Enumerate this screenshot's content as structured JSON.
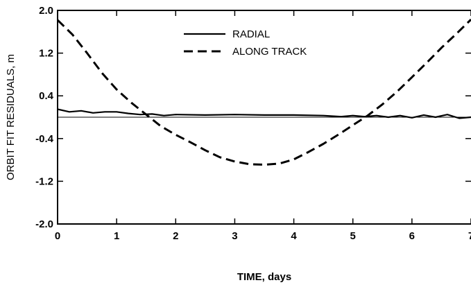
{
  "chart_data": {
    "type": "line",
    "title": "",
    "xlabel": "TIME, days",
    "ylabel": "ORBIT FIT RESIDUALS, m",
    "xlim": [
      0,
      7
    ],
    "ylim": [
      -2.0,
      2.0
    ],
    "x_ticks": [
      0,
      1,
      2,
      3,
      4,
      5,
      6,
      7
    ],
    "x_tick_labels": [
      "0",
      "1",
      "2",
      "3",
      "4",
      "5",
      "6",
      "7"
    ],
    "y_ticks": [
      2.0,
      1.2,
      0.4,
      -0.4,
      -1.2,
      -2.0
    ],
    "y_tick_labels": [
      "2.0",
      "1.2",
      "0.4",
      "-0.4",
      "-1.2",
      "-2.0"
    ],
    "grid": false,
    "legend_position": "top-center",
    "zero_line": true,
    "series": [
      {
        "name": "RADIAL",
        "style": "solid",
        "color": "#000000",
        "x": [
          0,
          0.2,
          0.4,
          0.6,
          0.8,
          1.0,
          1.2,
          1.4,
          1.6,
          1.8,
          2.0,
          2.5,
          3.0,
          3.5,
          4.0,
          4.5,
          4.8,
          5.0,
          5.2,
          5.4,
          5.6,
          5.8,
          6.0,
          6.2,
          6.4,
          6.6,
          6.8,
          7.0
        ],
        "y": [
          0.15,
          0.1,
          0.12,
          0.08,
          0.1,
          0.1,
          0.07,
          0.05,
          0.06,
          0.03,
          0.05,
          0.04,
          0.05,
          0.04,
          0.04,
          0.03,
          0.01,
          0.03,
          0.01,
          0.03,
          0.0,
          0.03,
          -0.01,
          0.04,
          0.0,
          0.05,
          -0.02,
          0.0
        ]
      },
      {
        "name": "ALONG TRACK",
        "style": "dashed",
        "color": "#000000",
        "x": [
          0,
          0.25,
          0.5,
          0.75,
          1.0,
          1.25,
          1.5,
          1.75,
          2.0,
          2.25,
          2.5,
          2.75,
          3.0,
          3.25,
          3.5,
          3.75,
          4.0,
          4.25,
          4.5,
          4.75,
          5.0,
          5.25,
          5.5,
          5.75,
          6.0,
          6.25,
          6.5,
          6.75,
          7.0
        ],
        "y": [
          1.82,
          1.55,
          1.2,
          0.83,
          0.52,
          0.27,
          0.05,
          -0.17,
          -0.33,
          -0.47,
          -0.62,
          -0.75,
          -0.83,
          -0.88,
          -0.89,
          -0.87,
          -0.79,
          -0.65,
          -0.5,
          -0.33,
          -0.15,
          0.03,
          0.24,
          0.48,
          0.75,
          1.02,
          1.3,
          1.56,
          1.83
        ]
      }
    ]
  }
}
